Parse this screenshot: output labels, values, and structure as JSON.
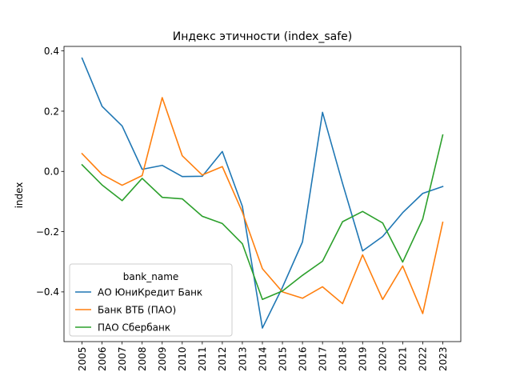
{
  "chart_data": {
    "type": "line",
    "title": "Индекс этичности (index_safe)",
    "xlabel": "",
    "ylabel": "index",
    "x": [
      "2005",
      "2006",
      "2007",
      "2008",
      "2009",
      "2010",
      "2011",
      "2012",
      "2013",
      "2014",
      "2015",
      "2016",
      "2017",
      "2018",
      "2019",
      "2020",
      "2021",
      "2022",
      "2023"
    ],
    "xlim": [
      2004.1,
      2023.9
    ],
    "ylim": [
      -0.565,
      0.415
    ],
    "yticks": [
      0.4,
      0.2,
      0.0,
      -0.2,
      -0.4
    ],
    "ytick_labels": [
      "0.4",
      "0.2",
      "0.0",
      "−0.2",
      "−0.4"
    ],
    "grid": false,
    "legend": {
      "title": "bank_name",
      "position": "lower-left"
    },
    "series": [
      {
        "name": "АО ЮниКредит Банк",
        "color": "#1f77b4",
        "values": [
          0.376,
          0.216,
          0.151,
          0.007,
          0.02,
          -0.017,
          -0.016,
          0.066,
          -0.116,
          -0.52,
          -0.385,
          -0.234,
          0.196,
          -0.04,
          -0.264,
          -0.216,
          -0.137,
          -0.073,
          -0.05
        ]
      },
      {
        "name": "Банк ВТБ (ПАО)",
        "color": "#ff7f0e",
        "values": [
          0.059,
          -0.01,
          -0.046,
          -0.014,
          0.245,
          0.052,
          -0.012,
          0.016,
          -0.135,
          -0.323,
          -0.4,
          -0.421,
          -0.383,
          -0.439,
          -0.277,
          -0.425,
          -0.314,
          -0.472,
          -0.169
        ]
      },
      {
        "name": "ПАО Сбербанк",
        "color": "#2ca02c",
        "values": [
          0.022,
          -0.045,
          -0.097,
          -0.023,
          -0.086,
          -0.091,
          -0.149,
          -0.173,
          -0.24,
          -0.425,
          -0.397,
          -0.345,
          -0.298,
          -0.167,
          -0.133,
          -0.171,
          -0.301,
          -0.158,
          0.121
        ]
      }
    ]
  }
}
